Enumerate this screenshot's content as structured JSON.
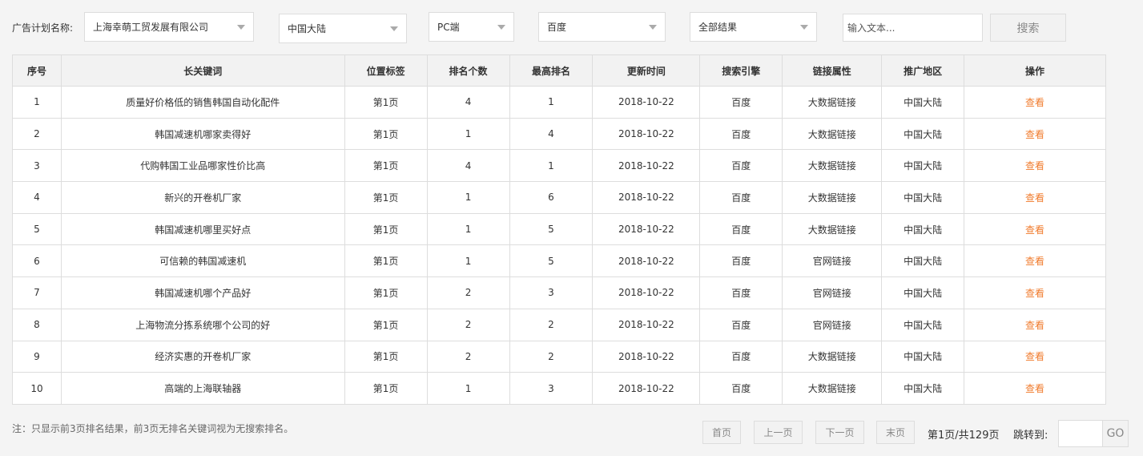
{
  "filters": {
    "plan_label": "广告计划名称:",
    "plan_value": "上海幸萌工贸发展有限公司",
    "region_value": "中国大陆",
    "device_value": "PC端",
    "engine_value": "百度",
    "result_value": "全部结果",
    "search_placeholder": "输入文本...",
    "search_button": "搜索"
  },
  "table": {
    "headers": [
      "序号",
      "长关键词",
      "位置标签",
      "排名个数",
      "最高排名",
      "更新时间",
      "搜索引擎",
      "链接属性",
      "推广地区",
      "操作"
    ],
    "rows": [
      [
        "1",
        "质量好价格低的销售韩国自动化配件",
        "第1页",
        "4",
        "1",
        "2018-10-22",
        "百度",
        "大数据链接",
        "中国大陆",
        "查看"
      ],
      [
        "2",
        "韩国减速机哪家卖得好",
        "第1页",
        "1",
        "4",
        "2018-10-22",
        "百度",
        "大数据链接",
        "中国大陆",
        "查看"
      ],
      [
        "3",
        "代购韩国工业品哪家性价比高",
        "第1页",
        "4",
        "1",
        "2018-10-22",
        "百度",
        "大数据链接",
        "中国大陆",
        "查看"
      ],
      [
        "4",
        "新兴的开卷机厂家",
        "第1页",
        "1",
        "6",
        "2018-10-22",
        "百度",
        "大数据链接",
        "中国大陆",
        "查看"
      ],
      [
        "5",
        "韩国减速机哪里买好点",
        "第1页",
        "1",
        "5",
        "2018-10-22",
        "百度",
        "大数据链接",
        "中国大陆",
        "查看"
      ],
      [
        "6",
        "可信赖的韩国减速机",
        "第1页",
        "1",
        "5",
        "2018-10-22",
        "百度",
        "官网链接",
        "中国大陆",
        "查看"
      ],
      [
        "7",
        "韩国减速机哪个产品好",
        "第1页",
        "2",
        "3",
        "2018-10-22",
        "百度",
        "官网链接",
        "中国大陆",
        "查看"
      ],
      [
        "8",
        "上海物流分拣系统哪个公司的好",
        "第1页",
        "2",
        "2",
        "2018-10-22",
        "百度",
        "官网链接",
        "中国大陆",
        "查看"
      ],
      [
        "9",
        "经济实惠的开卷机厂家",
        "第1页",
        "2",
        "2",
        "2018-10-22",
        "百度",
        "大数据链接",
        "中国大陆",
        "查看"
      ],
      [
        "10",
        "高端的上海联轴器",
        "第1页",
        "1",
        "3",
        "2018-10-22",
        "百度",
        "大数据链接",
        "中国大陆",
        "查看"
      ]
    ]
  },
  "footer": {
    "note": "注：只显示前3页排名结果，前3页无排名关键词视为无搜索排名。",
    "first": "首页",
    "prev": "上一页",
    "next": "下一页",
    "last": "末页",
    "page_info": "第1页/共129页",
    "jump_label": "跳转到:",
    "jump_value": "",
    "go": "GO"
  },
  "colors": {
    "link": "#f07b2d"
  }
}
